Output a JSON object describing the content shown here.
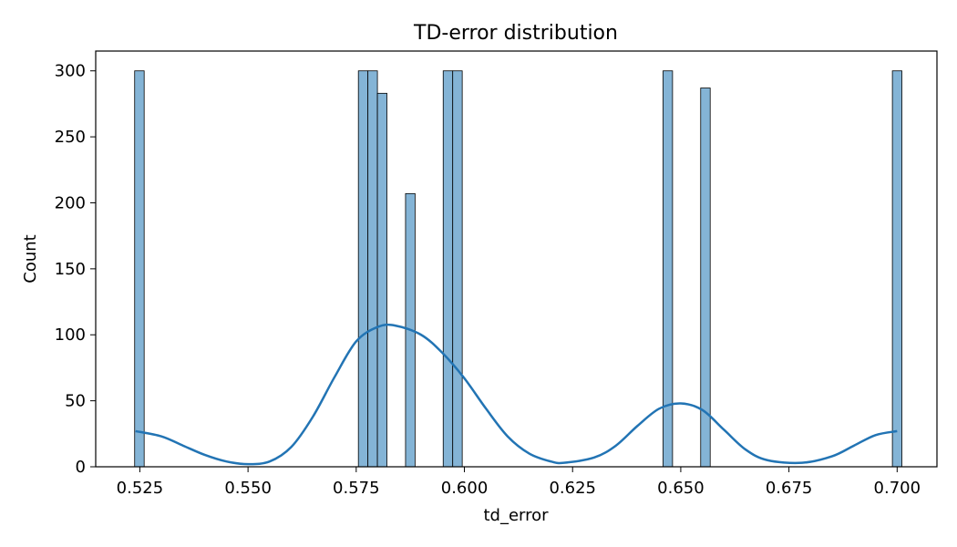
{
  "chart_data": {
    "type": "bar",
    "title": "TD-error distribution",
    "xlabel": "td_error",
    "ylabel": "Count",
    "xlim": [
      0.5148,
      0.7092
    ],
    "ylim": [
      0,
      315
    ],
    "xticks": [
      "0.525",
      "0.550",
      "0.575",
      "0.600",
      "0.625",
      "0.650",
      "0.675",
      "0.700"
    ],
    "yticks": [
      "0",
      "50",
      "100",
      "150",
      "200",
      "250",
      "300"
    ],
    "bar_color": "#84b4d6",
    "line_color": "#2274b4",
    "grid": false,
    "bins": [
      {
        "x0": 0.5238,
        "x1": 0.526,
        "count": 300
      },
      {
        "x0": 0.5755,
        "x1": 0.5777,
        "count": 300
      },
      {
        "x0": 0.5777,
        "x1": 0.5799,
        "count": 300
      },
      {
        "x0": 0.5799,
        "x1": 0.5821,
        "count": 283
      },
      {
        "x0": 0.5864,
        "x1": 0.5886,
        "count": 207
      },
      {
        "x0": 0.5951,
        "x1": 0.5973,
        "count": 300
      },
      {
        "x0": 0.5973,
        "x1": 0.5995,
        "count": 300
      },
      {
        "x0": 0.6459,
        "x1": 0.6481,
        "count": 300
      },
      {
        "x0": 0.6546,
        "x1": 0.6568,
        "count": 287
      },
      {
        "x0": 0.6989,
        "x1": 0.7011,
        "count": 300
      }
    ],
    "kde": {
      "x": [
        0.524,
        0.53,
        0.535,
        0.54,
        0.545,
        0.55,
        0.555,
        0.56,
        0.565,
        0.57,
        0.575,
        0.58,
        0.584,
        0.59,
        0.595,
        0.6,
        0.605,
        0.61,
        0.615,
        0.62,
        0.623,
        0.63,
        0.635,
        0.64,
        0.645,
        0.65,
        0.655,
        0.66,
        0.665,
        0.67,
        0.678,
        0.685,
        0.69,
        0.695,
        0.7
      ],
      "y": [
        27,
        23,
        16,
        9,
        4,
        2,
        4,
        15,
        38,
        68,
        95,
        106,
        107,
        100,
        86,
        67,
        44,
        23,
        10,
        4,
        3,
        7,
        16,
        31,
        44,
        48,
        43,
        28,
        13,
        5,
        3,
        8,
        16,
        24,
        27
      ]
    }
  }
}
